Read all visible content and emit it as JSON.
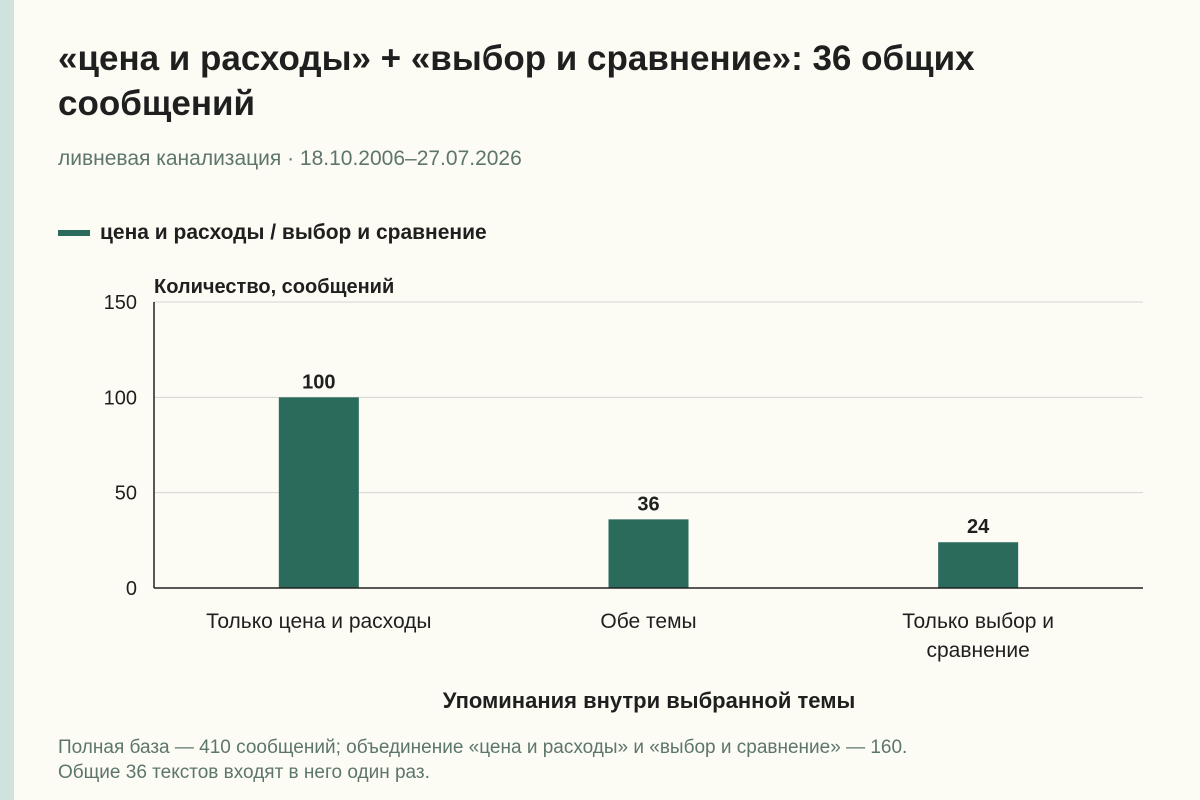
{
  "header": {
    "title": "«цена и расходы» + «выбор и сравнение»: 36 общих сообщений",
    "subtitle": "ливневая канализация · 18.10.2006–27.07.2026"
  },
  "legend": {
    "label": "цена и расходы / выбор и сравнение",
    "color": "#2b6b5c"
  },
  "chart_data": {
    "type": "bar",
    "title": "«цена и расходы» + «выбор и сравнение»: 36 общих сообщений",
    "subtitle": "ливневая канализация · 18.10.2006–27.07.2026",
    "categories": [
      [
        "Только цена и расходы"
      ],
      [
        "Обе темы"
      ],
      [
        "Только выбор и",
        "сравнение"
      ]
    ],
    "series": [
      {
        "name": "цена и расходы / выбор и сравнение",
        "values": [
          100,
          36,
          24
        ],
        "color": "#2b6b5c"
      }
    ],
    "data_labels": [
      "100",
      "36",
      "24"
    ],
    "xlabel": "Упоминания внутри выбранной темы",
    "ylabel": "Количество, сообщений",
    "ylim": [
      0,
      150
    ],
    "yticks": [
      0,
      50,
      100,
      150
    ],
    "grid": true,
    "legend_position": "top-left"
  },
  "footnote": {
    "lines": [
      "Полная база — 410 сообщений; объединение «цена и расходы» и «выбор и сравнение» — 160.",
      "Общие 36 текстов входят в него один раз."
    ]
  }
}
